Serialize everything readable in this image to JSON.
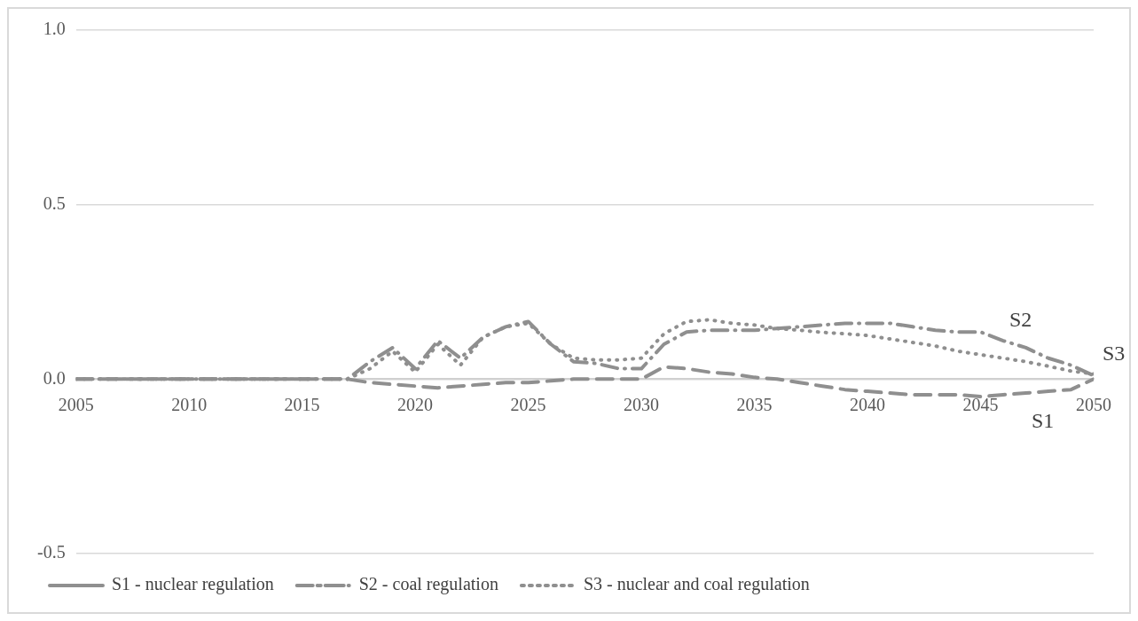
{
  "chart_data": {
    "type": "line",
    "x": [
      2005,
      2006,
      2007,
      2008,
      2009,
      2010,
      2011,
      2012,
      2013,
      2014,
      2015,
      2016,
      2017,
      2018,
      2019,
      2020,
      2021,
      2022,
      2023,
      2024,
      2025,
      2026,
      2027,
      2028,
      2029,
      2030,
      2031,
      2032,
      2033,
      2034,
      2035,
      2036,
      2037,
      2038,
      2039,
      2040,
      2041,
      2042,
      2043,
      2044,
      2045,
      2046,
      2047,
      2048,
      2049,
      2050
    ],
    "series": [
      {
        "name": "S1 - nuclear regulation",
        "color": "#8f8f8f",
        "line_style": "dashed",
        "values": [
          0,
          0,
          0,
          0,
          0,
          0,
          0,
          0,
          0,
          0,
          0,
          0,
          0,
          -0.01,
          -0.015,
          -0.02,
          -0.025,
          -0.02,
          -0.015,
          -0.01,
          -0.01,
          -0.005,
          0,
          0,
          0,
          0,
          0.035,
          0.03,
          0.02,
          0.015,
          0.005,
          0,
          -0.01,
          -0.02,
          -0.03,
          -0.035,
          -0.04,
          -0.045,
          -0.045,
          -0.045,
          -0.05,
          -0.045,
          -0.04,
          -0.035,
          -0.03,
          0
        ]
      },
      {
        "name": "S2 - coal regulation",
        "color": "#8f8f8f",
        "line_style": "dashdot",
        "values": [
          0,
          0,
          0,
          0,
          0,
          0,
          0,
          0,
          0,
          0,
          0,
          0,
          0,
          0.05,
          0.09,
          0.03,
          0.11,
          0.06,
          0.12,
          0.15,
          0.165,
          0.1,
          0.05,
          0.045,
          0.03,
          0.03,
          0.1,
          0.135,
          0.14,
          0.14,
          0.14,
          0.145,
          0.15,
          0.155,
          0.16,
          0.16,
          0.16,
          0.15,
          0.14,
          0.135,
          0.135,
          0.11,
          0.09,
          0.06,
          0.04,
          0.01
        ]
      },
      {
        "name": "S3 - nuclear and coal regulation",
        "color": "#8f8f8f",
        "line_style": "dotted",
        "values": [
          0,
          0,
          0,
          0,
          0,
          0,
          0,
          0,
          0,
          0,
          0,
          0,
          0,
          0.03,
          0.08,
          0.02,
          0.1,
          0.04,
          0.12,
          0.15,
          0.16,
          0.1,
          0.06,
          0.055,
          0.055,
          0.06,
          0.13,
          0.165,
          0.17,
          0.16,
          0.155,
          0.145,
          0.14,
          0.134,
          0.13,
          0.125,
          0.115,
          0.105,
          0.095,
          0.08,
          0.07,
          0.06,
          0.05,
          0.037,
          0.023,
          0.015
        ]
      }
    ],
    "xlim": [
      2005,
      2050
    ],
    "xticks": [
      2005,
      2010,
      2015,
      2020,
      2025,
      2030,
      2035,
      2040,
      2045,
      2050
    ],
    "ylim": [
      -0.5,
      1.0
    ],
    "yticks": [
      -0.5,
      {
        "value": 0,
        "label": "0.0"
      },
      0.5,
      {
        "value": 1.0,
        "label": "1.0"
      }
    ],
    "grid": "y",
    "legend": "bottom",
    "marker": "none",
    "annotations": [
      "S1",
      "S2",
      "S3"
    ]
  }
}
